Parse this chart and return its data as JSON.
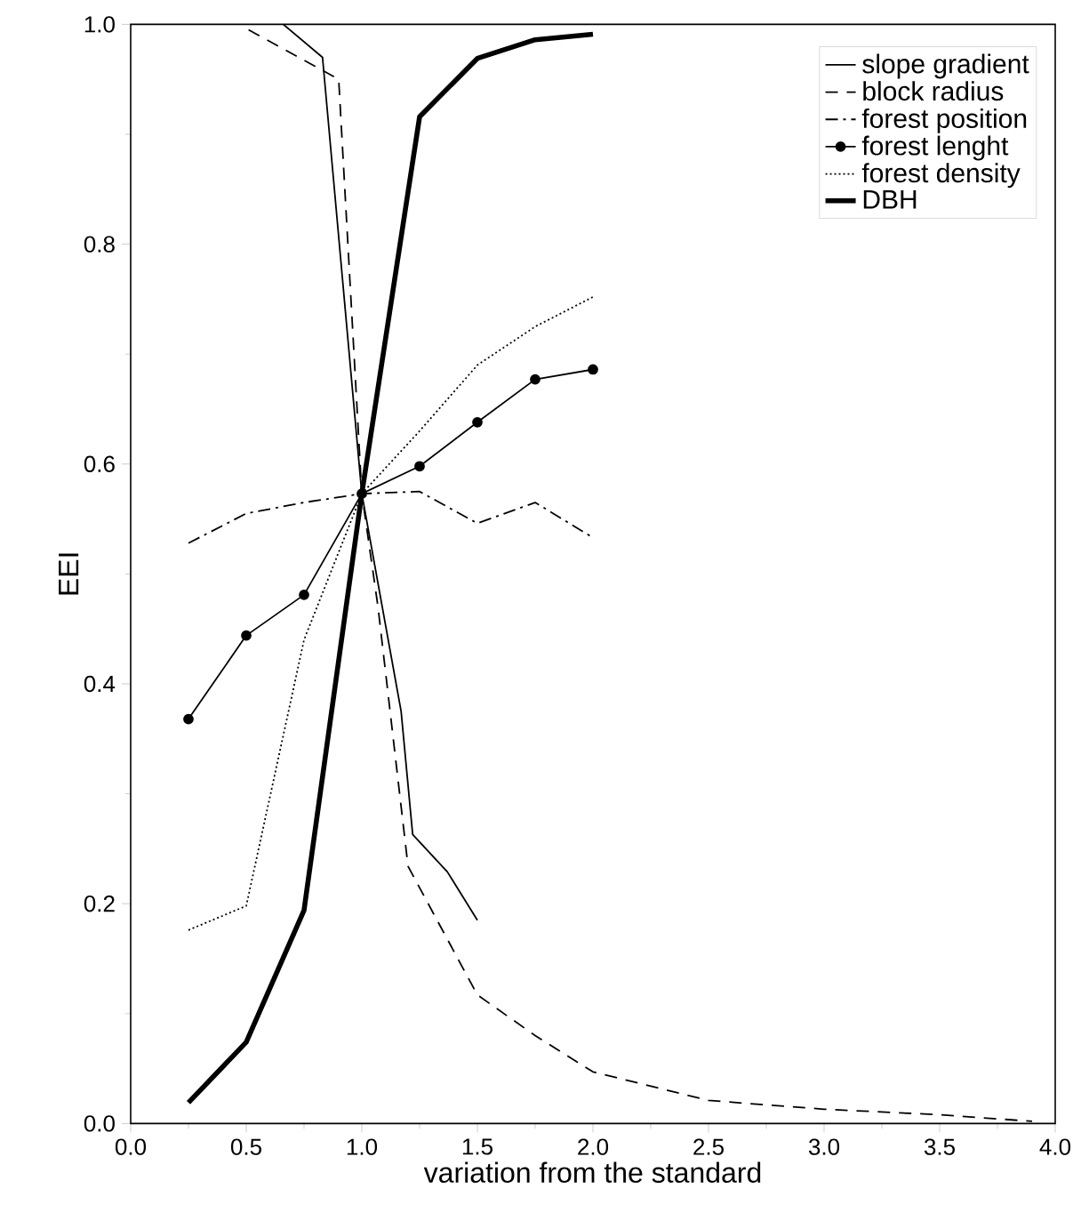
{
  "chart_data": {
    "type": "line",
    "xlabel": "variation from the standard",
    "ylabel": "EEI",
    "xlim": [
      0,
      4
    ],
    "ylim": [
      0,
      1
    ],
    "xticks": [
      {
        "value": 0,
        "label": "0.0"
      },
      {
        "value": 0.5,
        "label": "0.5"
      },
      {
        "value": 1,
        "label": "1.0"
      },
      {
        "value": 1.5,
        "label": "1.5"
      },
      {
        "value": 2,
        "label": "2.0"
      },
      {
        "value": 2.5,
        "label": "2.5"
      },
      {
        "value": 3,
        "label": "3.0"
      },
      {
        "value": 3.5,
        "label": "3.5"
      },
      {
        "value": 4,
        "label": "4.0"
      }
    ],
    "yticks": [
      {
        "value": 0,
        "label": "0.0"
      },
      {
        "value": 0.2,
        "label": "0.2"
      },
      {
        "value": 0.4,
        "label": "0.4"
      },
      {
        "value": 0.6,
        "label": "0.6"
      },
      {
        "value": 0.8,
        "label": "0.8"
      },
      {
        "value": 1,
        "label": "1.0"
      }
    ],
    "grid": false,
    "legend": "top right",
    "series": [
      {
        "name": "slope gradient",
        "color": "#000000",
        "line_style": "solid",
        "marker": "none",
        "x": [
          0.66,
          0.83,
          1.0,
          1.17,
          1.22,
          1.37,
          1.5
        ],
        "values": [
          1.0,
          0.97,
          0.573,
          0.375,
          0.263,
          0.229,
          0.185
        ]
      },
      {
        "name": "block radius",
        "color": "#000000",
        "line_style": "dashed",
        "marker": "none",
        "x": [
          0.51,
          0.9,
          1.0,
          1.07,
          1.2,
          1.5,
          1.75,
          2.0,
          2.5,
          3.0,
          3.5,
          3.9
        ],
        "values": [
          0.995,
          0.95,
          0.573,
          0.47,
          0.234,
          0.117,
          0.08,
          0.047,
          0.021,
          0.013,
          0.008,
          0.002
        ]
      },
      {
        "name": "forest position",
        "color": "#000000",
        "line_style": "dashdot",
        "marker": "none",
        "x": [
          0.25,
          0.5,
          0.75,
          1.0,
          1.25,
          1.5,
          1.75,
          2.0
        ],
        "values": [
          0.528,
          0.555,
          0.565,
          0.573,
          0.575,
          0.546,
          0.565,
          0.533
        ]
      },
      {
        "name": "forest lenght",
        "color": "#000000",
        "line_style": "solid",
        "marker": "circle",
        "x": [
          0.25,
          0.5,
          0.75,
          1.0,
          1.25,
          1.5,
          1.75,
          2.0
        ],
        "values": [
          0.368,
          0.444,
          0.481,
          0.573,
          0.598,
          0.638,
          0.677,
          0.686
        ]
      },
      {
        "name": "forest density",
        "color": "#000000",
        "line_style": "dotted",
        "marker": "none",
        "x": [
          0.25,
          0.5,
          0.75,
          1.0,
          1.25,
          1.5,
          1.75,
          2.0
        ],
        "values": [
          0.176,
          0.198,
          0.44,
          0.573,
          0.63,
          0.69,
          0.725,
          0.752
        ]
      },
      {
        "name": "DBH",
        "color": "#000000",
        "line_style": "solid",
        "marker": "none",
        "x": [
          0.25,
          0.5,
          0.75,
          1.0,
          1.25,
          1.5,
          1.75,
          2.0
        ],
        "values": [
          0.019,
          0.074,
          0.194,
          0.573,
          0.916,
          0.969,
          0.986,
          0.991
        ]
      }
    ]
  }
}
